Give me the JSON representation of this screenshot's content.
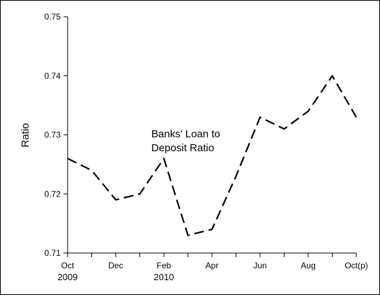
{
  "chart_data": {
    "type": "line",
    "title": "",
    "xlabel": "",
    "ylabel": "Ratio",
    "ylim": [
      0.71,
      0.75
    ],
    "yticks": [
      "0.71",
      "0.72",
      "0.73",
      "0.74",
      "0.75"
    ],
    "xlabels": [
      {
        "index": 0,
        "line1": "Oct",
        "line2": "2009"
      },
      {
        "index": 2,
        "line1": "Dec",
        "line2": ""
      },
      {
        "index": 4,
        "line1": "Feb",
        "line2": "2010"
      },
      {
        "index": 6,
        "line1": "Apr",
        "line2": ""
      },
      {
        "index": 8,
        "line1": "Jun",
        "line2": ""
      },
      {
        "index": 10,
        "line1": "Aug",
        "line2": ""
      },
      {
        "index": 12,
        "line1": "Oct(p)",
        "line2": ""
      }
    ],
    "series": [
      {
        "name": "Banks' Loan to Deposit Ratio",
        "color": "#000000",
        "style": "dashed",
        "values": [
          0.726,
          0.724,
          0.719,
          0.72,
          0.726,
          0.713,
          0.714,
          0.723,
          0.733,
          0.731,
          0.734,
          0.74,
          0.733
        ]
      }
    ],
    "annotation": {
      "line1": "Banks' Loan to",
      "line2": "Deposit Ratio"
    },
    "grid": false,
    "legend": "none"
  }
}
